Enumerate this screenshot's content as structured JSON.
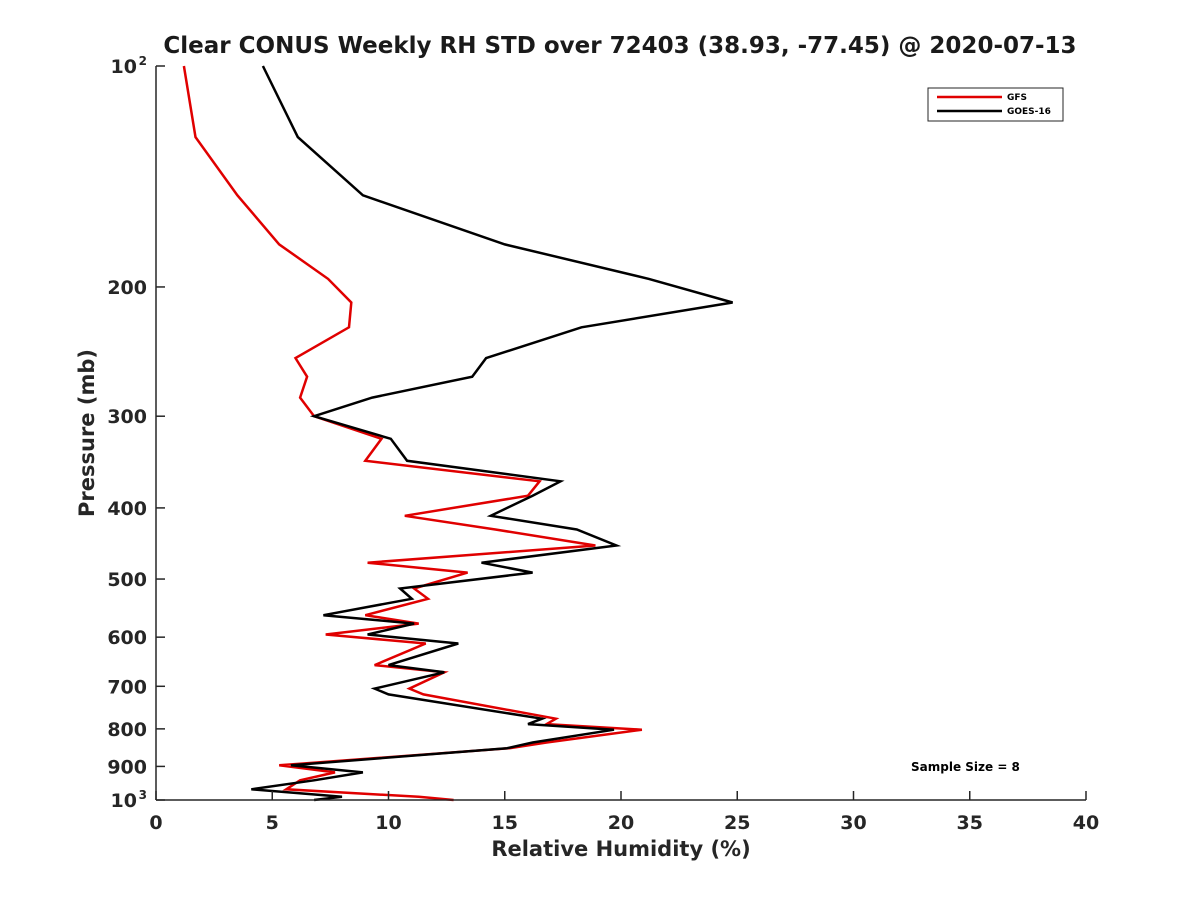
{
  "chart_data": {
    "type": "line",
    "title": "Clear CONUS Weekly RH STD over 72403 (38.93, -77.45) @ 2020-07-13",
    "xlabel": "Relative Humidity (%)",
    "ylabel": "Pressure (mb)",
    "xlim": [
      0,
      40
    ],
    "ylim": [
      100,
      1000
    ],
    "y_scale": "log",
    "y_reversed": true,
    "x_ticks": [
      "0",
      "5",
      "10",
      "15",
      "20",
      "25",
      "30",
      "35",
      "40"
    ],
    "y_ticks": [
      {
        "value": 100,
        "label": "10",
        "sup": "2"
      },
      {
        "value": 200,
        "label": "200",
        "sup": ""
      },
      {
        "value": 300,
        "label": "300",
        "sup": ""
      },
      {
        "value": 400,
        "label": "400",
        "sup": ""
      },
      {
        "value": 500,
        "label": "500",
        "sup": ""
      },
      {
        "value": 600,
        "label": "600",
        "sup": ""
      },
      {
        "value": 700,
        "label": "700",
        "sup": ""
      },
      {
        "value": 800,
        "label": "800",
        "sup": ""
      },
      {
        "value": 900,
        "label": "900",
        "sup": ""
      },
      {
        "value": 1000,
        "label": "10",
        "sup": "3"
      }
    ],
    "grid": false,
    "legend_position": "top-right",
    "annotation": "Sample Size = 8",
    "series": [
      {
        "name": "GFS",
        "color": "#e00000",
        "points": [
          [
            1.2,
            100
          ],
          [
            1.7,
            125
          ],
          [
            3.5,
            150
          ],
          [
            5.3,
            175
          ],
          [
            7.4,
            195
          ],
          [
            8.4,
            210
          ],
          [
            8.3,
            227
          ],
          [
            6.0,
            250
          ],
          [
            6.5,
            265
          ],
          [
            6.2,
            283
          ],
          [
            6.8,
            300
          ],
          [
            9.7,
            322
          ],
          [
            9.0,
            345
          ],
          [
            16.5,
            368
          ],
          [
            16.0,
            385
          ],
          [
            10.7,
            410
          ],
          [
            14.6,
            428
          ],
          [
            18.9,
            450
          ],
          [
            9.1,
            475
          ],
          [
            13.4,
            490
          ],
          [
            11.1,
            515
          ],
          [
            11.7,
            532
          ],
          [
            9.0,
            560
          ],
          [
            11.3,
            575
          ],
          [
            7.3,
            595
          ],
          [
            11.6,
            612
          ],
          [
            9.4,
            655
          ],
          [
            12.4,
            670
          ],
          [
            10.9,
            705
          ],
          [
            11.5,
            718
          ],
          [
            17.2,
            775
          ],
          [
            16.8,
            788
          ],
          [
            20.9,
            802
          ],
          [
            16.8,
            835
          ],
          [
            15.2,
            850
          ],
          [
            5.3,
            897
          ],
          [
            7.7,
            917
          ],
          [
            6.2,
            940
          ],
          [
            5.6,
            967
          ],
          [
            11.3,
            990
          ],
          [
            12.8,
            1000
          ]
        ]
      },
      {
        "name": "GOES-16",
        "color": "#000000",
        "points": [
          [
            4.6,
            100
          ],
          [
            6.1,
            125
          ],
          [
            8.9,
            150
          ],
          [
            15.0,
            175
          ],
          [
            21.2,
            195
          ],
          [
            24.8,
            210
          ],
          [
            18.3,
            227
          ],
          [
            14.2,
            250
          ],
          [
            13.6,
            265
          ],
          [
            9.3,
            283
          ],
          [
            6.8,
            300
          ],
          [
            10.1,
            322
          ],
          [
            10.8,
            345
          ],
          [
            17.4,
            368
          ],
          [
            16.2,
            385
          ],
          [
            14.4,
            410
          ],
          [
            18.1,
            428
          ],
          [
            19.8,
            450
          ],
          [
            14.0,
            475
          ],
          [
            16.2,
            490
          ],
          [
            10.5,
            515
          ],
          [
            11.0,
            532
          ],
          [
            7.2,
            560
          ],
          [
            11.1,
            575
          ],
          [
            9.1,
            595
          ],
          [
            13.0,
            612
          ],
          [
            10.0,
            655
          ],
          [
            12.4,
            670
          ],
          [
            9.4,
            705
          ],
          [
            10.0,
            718
          ],
          [
            16.6,
            775
          ],
          [
            16.0,
            788
          ],
          [
            19.7,
            802
          ],
          [
            16.2,
            835
          ],
          [
            15.1,
            850
          ],
          [
            5.8,
            897
          ],
          [
            8.9,
            917
          ],
          [
            6.8,
            940
          ],
          [
            4.1,
            967
          ],
          [
            8.0,
            990
          ],
          [
            6.8,
            1000
          ]
        ]
      }
    ]
  }
}
